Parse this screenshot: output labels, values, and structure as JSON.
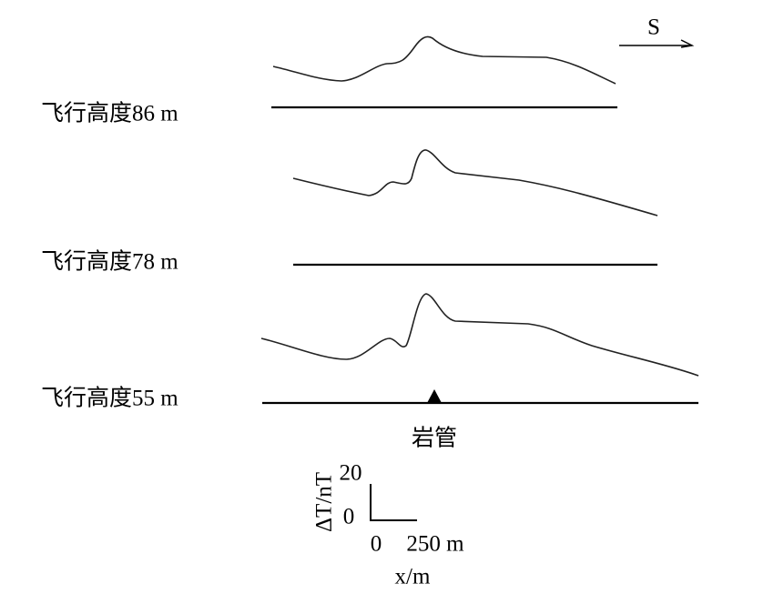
{
  "profiles": [
    {
      "label": "飞行高度86 m"
    },
    {
      "label": "飞行高度78 m"
    },
    {
      "label": "飞行高度55 m"
    }
  ],
  "direction": "S",
  "target_label": "岩管",
  "scale": {
    "y_label": "ΔT/nT",
    "y_top": "20",
    "y_bottom": "0",
    "x_start": "0",
    "x_end": "250 m",
    "x_label": "x/m"
  }
}
